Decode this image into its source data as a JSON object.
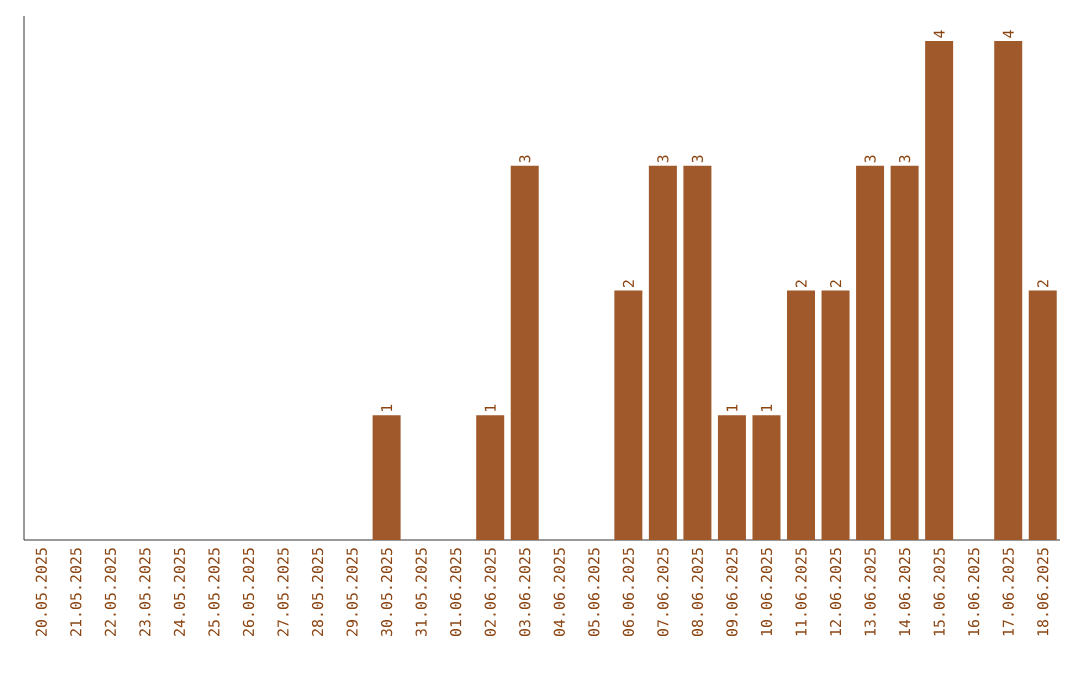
{
  "chart_data": {
    "type": "bar",
    "categories": [
      "20.05.2025",
      "21.05.2025",
      "22.05.2025",
      "23.05.2025",
      "24.05.2025",
      "25.05.2025",
      "26.05.2025",
      "27.05.2025",
      "28.05.2025",
      "29.05.2025",
      "30.05.2025",
      "31.05.2025",
      "01.06.2025",
      "02.06.2025",
      "03.06.2025",
      "04.06.2025",
      "05.06.2025",
      "06.06.2025",
      "07.06.2025",
      "08.06.2025",
      "09.06.2025",
      "10.06.2025",
      "11.06.2025",
      "12.06.2025",
      "13.06.2025",
      "14.06.2025",
      "15.06.2025",
      "16.06.2025",
      "17.06.2025",
      "18.06.2025"
    ],
    "values": [
      0,
      0,
      0,
      0,
      0,
      0,
      0,
      0,
      0,
      0,
      1,
      0,
      0,
      1,
      3,
      0,
      0,
      2,
      3,
      3,
      1,
      1,
      2,
      2,
      3,
      3,
      4,
      0,
      4,
      2
    ],
    "value_labels": [
      null,
      null,
      null,
      null,
      null,
      null,
      null,
      null,
      null,
      null,
      "1",
      null,
      null,
      "1",
      "3",
      null,
      null,
      "2",
      "3",
      "3",
      "1",
      "1",
      "2",
      "2",
      "3",
      "3",
      "4",
      null,
      "4",
      "2"
    ],
    "color": "#a0592a",
    "ylim": [
      0,
      4.2
    ],
    "tick_labels": "x",
    "grid": false
  }
}
